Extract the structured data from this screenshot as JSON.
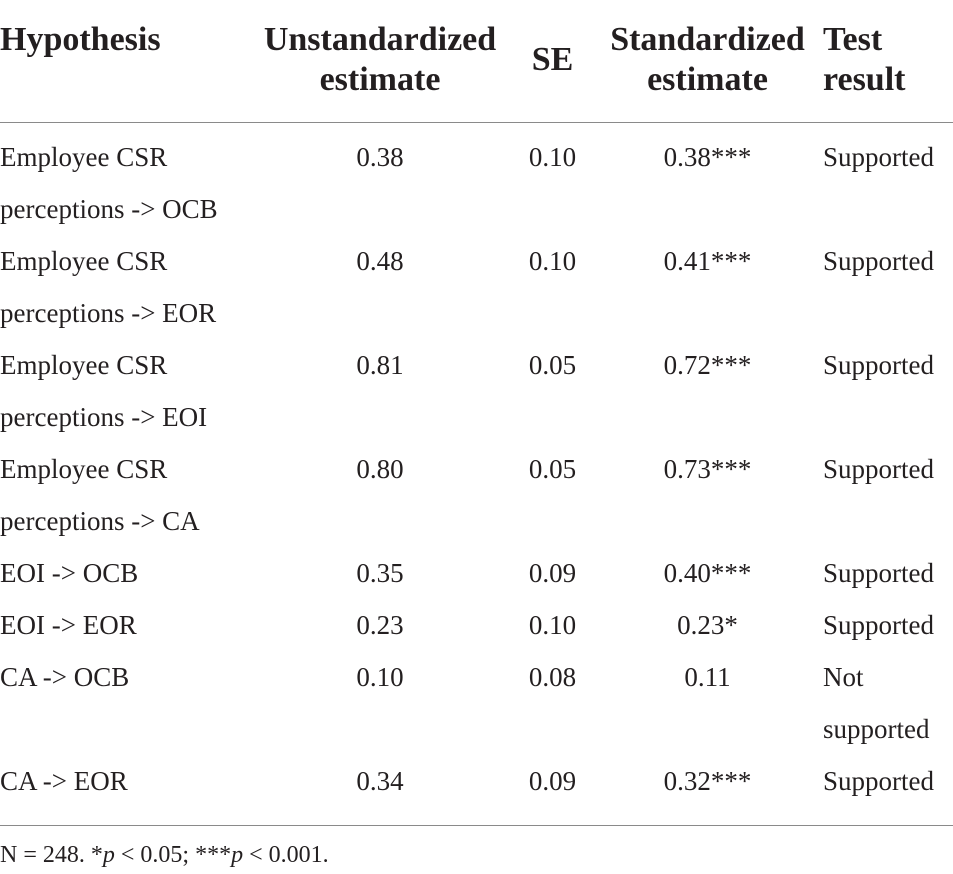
{
  "table": {
    "headers": {
      "hypothesis": "Hypothesis",
      "unstandardized": [
        "Unstandardized",
        "estimate"
      ],
      "se": "SE",
      "standardized": [
        "Standardized",
        "estimate"
      ],
      "test_result": [
        "Test",
        "result"
      ]
    },
    "rows": [
      {
        "hypothesis": [
          "Employee CSR",
          "perceptions -> OCB"
        ],
        "unstandardized": "0.38",
        "se": "0.10",
        "standardized": "0.38***",
        "test_result": [
          "Supported"
        ]
      },
      {
        "hypothesis": [
          "Employee CSR",
          "perceptions -> EOR"
        ],
        "unstandardized": "0.48",
        "se": "0.10",
        "standardized": "0.41***",
        "test_result": [
          "Supported"
        ]
      },
      {
        "hypothesis": [
          "Employee CSR",
          "perceptions -> EOI"
        ],
        "unstandardized": "0.81",
        "se": "0.05",
        "standardized": "0.72***",
        "test_result": [
          "Supported"
        ]
      },
      {
        "hypothesis": [
          "Employee CSR",
          "perceptions -> CA"
        ],
        "unstandardized": "0.80",
        "se": "0.05",
        "standardized": "0.73***",
        "test_result": [
          "Supported"
        ]
      },
      {
        "hypothesis": [
          "EOI -> OCB"
        ],
        "unstandardized": "0.35",
        "se": "0.09",
        "standardized": "0.40***",
        "test_result": [
          "Supported"
        ]
      },
      {
        "hypothesis": [
          "EOI -> EOR"
        ],
        "unstandardized": "0.23",
        "se": "0.10",
        "standardized": "0.23*",
        "test_result": [
          "Supported"
        ]
      },
      {
        "hypothesis": [
          "CA -> OCB"
        ],
        "unstandardized": "0.10",
        "se": "0.08",
        "standardized": "0.11",
        "test_result": [
          "Not",
          "supported"
        ]
      },
      {
        "hypothesis": [
          "CA -> EOR"
        ],
        "unstandardized": "0.34",
        "se": "0.09",
        "standardized": "0.32***",
        "test_result": [
          "Supported"
        ]
      }
    ],
    "footnote": {
      "n": "N = 248. *",
      "p1": "p",
      "mid": " < 0.05; ***",
      "p2": "p",
      "end": " < 0.001."
    }
  }
}
